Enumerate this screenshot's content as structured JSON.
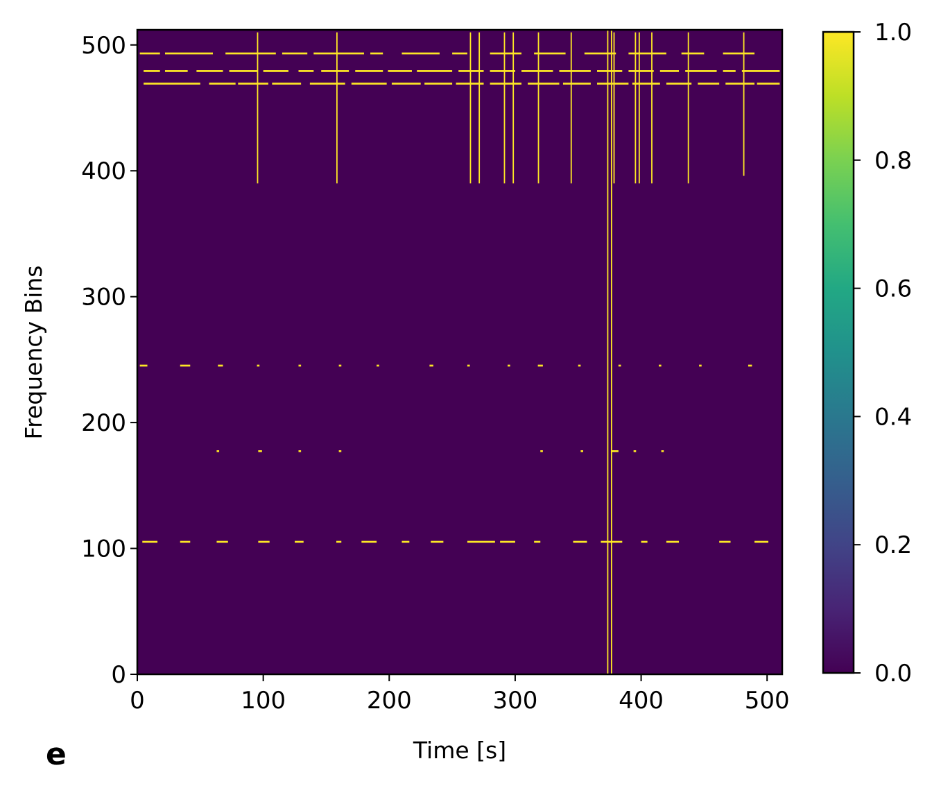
{
  "panel_label": "e",
  "chart_data": {
    "type": "heatmap",
    "title": "",
    "xlabel": "Time [s]",
    "ylabel": "Frequency Bins",
    "xlim": [
      0,
      512
    ],
    "ylim": [
      0,
      512
    ],
    "x_ticks": [
      0,
      100,
      200,
      300,
      400,
      500
    ],
    "y_ticks": [
      0,
      100,
      200,
      300,
      400,
      500
    ],
    "colorbar": {
      "colormap": "viridis",
      "range": [
        0.0,
        1.0
      ],
      "ticks": [
        "0.0",
        "0.2",
        "0.4",
        "0.6",
        "0.8",
        "1.0"
      ],
      "low_color": "#440154",
      "high_color": "#fde725"
    },
    "background_value": 0.0,
    "active_value": 1.0,
    "active_full_columns": [
      373,
      376
    ],
    "active_partial_columns": [
      {
        "x": 95,
        "y_from": 390,
        "y_to": 510
      },
      {
        "x": 158,
        "y_from": 390,
        "y_to": 510
      },
      {
        "x": 264,
        "y_from": 390,
        "y_to": 510
      },
      {
        "x": 271,
        "y_from": 390,
        "y_to": 510
      },
      {
        "x": 291,
        "y_from": 390,
        "y_to": 510
      },
      {
        "x": 298,
        "y_from": 390,
        "y_to": 510
      },
      {
        "x": 318,
        "y_from": 390,
        "y_to": 510
      },
      {
        "x": 344,
        "y_from": 390,
        "y_to": 510
      },
      {
        "x": 378,
        "y_from": 390,
        "y_to": 510
      },
      {
        "x": 395,
        "y_from": 390,
        "y_to": 510
      },
      {
        "x": 398,
        "y_from": 390,
        "y_to": 510
      },
      {
        "x": 408,
        "y_from": 390,
        "y_to": 510
      },
      {
        "x": 437,
        "y_from": 390,
        "y_to": 510
      },
      {
        "x": 481,
        "y_from": 396,
        "y_to": 510
      }
    ],
    "active_row_segments": [
      {
        "y": 469,
        "segments": [
          [
            5,
            50
          ],
          [
            57,
            78
          ],
          [
            80,
            104
          ],
          [
            107,
            130
          ],
          [
            137,
            165
          ],
          [
            170,
            198
          ],
          [
            202,
            225
          ],
          [
            228,
            250
          ],
          [
            253,
            275
          ],
          [
            280,
            305
          ],
          [
            310,
            335
          ],
          [
            338,
            360
          ],
          [
            365,
            390
          ],
          [
            393,
            415
          ],
          [
            420,
            440
          ],
          [
            445,
            462
          ],
          [
            467,
            490
          ],
          [
            492,
            510
          ]
        ]
      },
      {
        "y": 479,
        "segments": [
          [
            5,
            18
          ],
          [
            22,
            40
          ],
          [
            47,
            68
          ],
          [
            73,
            95
          ],
          [
            100,
            120
          ],
          [
            128,
            140
          ],
          [
            146,
            168
          ],
          [
            173,
            195
          ],
          [
            199,
            218
          ],
          [
            222,
            250
          ],
          [
            255,
            275
          ],
          [
            280,
            300
          ],
          [
            305,
            330
          ],
          [
            335,
            360
          ],
          [
            365,
            385
          ],
          [
            390,
            410
          ],
          [
            415,
            430
          ],
          [
            435,
            460
          ],
          [
            465,
            475
          ],
          [
            480,
            510
          ]
        ]
      },
      {
        "y": 493,
        "segments": [
          [
            2,
            18
          ],
          [
            22,
            60
          ],
          [
            70,
            110
          ],
          [
            115,
            135
          ],
          [
            140,
            180
          ],
          [
            185,
            195
          ],
          [
            210,
            240
          ],
          [
            250,
            262
          ],
          [
            280,
            305
          ],
          [
            315,
            340
          ],
          [
            355,
            380
          ],
          [
            390,
            420
          ],
          [
            432,
            450
          ],
          [
            465,
            490
          ]
        ]
      },
      {
        "y": 105,
        "segments": [
          [
            4,
            16
          ],
          [
            34,
            42
          ],
          [
            63,
            72
          ],
          [
            96,
            105
          ],
          [
            125,
            132
          ],
          [
            158,
            162
          ],
          [
            178,
            190
          ],
          [
            210,
            216
          ],
          [
            233,
            243
          ],
          [
            262,
            284
          ],
          [
            288,
            300
          ],
          [
            315,
            320
          ],
          [
            346,
            357
          ],
          [
            368,
            385
          ],
          [
            400,
            405
          ],
          [
            420,
            430
          ],
          [
            462,
            471
          ],
          [
            490,
            501
          ]
        ]
      },
      {
        "y": 245,
        "segments": [
          [
            2,
            8
          ],
          [
            34,
            42
          ],
          [
            64,
            68
          ],
          [
            95,
            97
          ],
          [
            128,
            130
          ],
          [
            160,
            162
          ],
          [
            190,
            192
          ],
          [
            232,
            235
          ],
          [
            262,
            264
          ],
          [
            294,
            296
          ],
          [
            318,
            322
          ],
          [
            350,
            352
          ],
          [
            382,
            384
          ],
          [
            414,
            416
          ],
          [
            446,
            448
          ],
          [
            485,
            488
          ]
        ]
      },
      {
        "y": 177,
        "segments": [
          [
            63,
            65
          ],
          [
            96,
            99
          ],
          [
            128,
            130
          ],
          [
            160,
            162
          ],
          [
            320,
            322
          ],
          [
            352,
            354
          ],
          [
            376,
            382
          ],
          [
            394,
            396
          ],
          [
            416,
            418
          ]
        ]
      }
    ]
  }
}
